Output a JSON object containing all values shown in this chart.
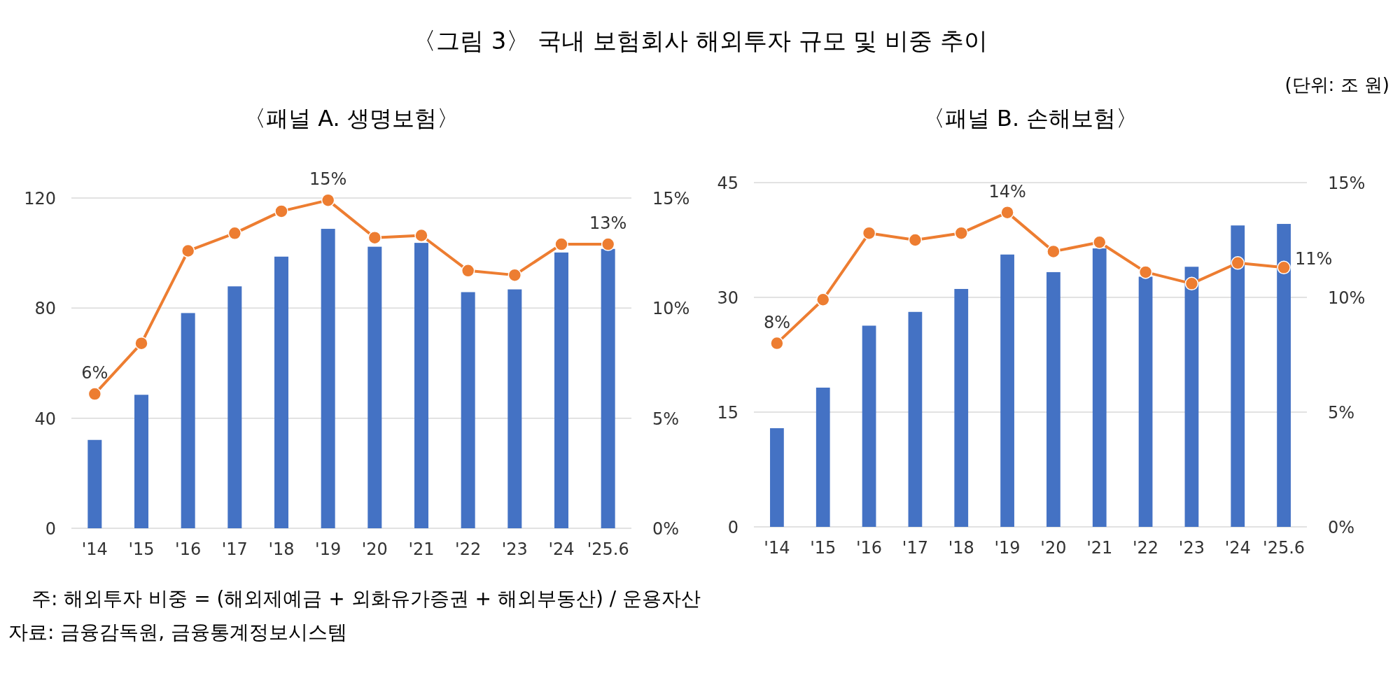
{
  "chart_data": [
    {
      "type": "bar",
      "title": "〈그림 3〉 국내 보험회사 해외투자 규모 및 비중 추이",
      "subtitle": "〈패널 A. 생명보험〉",
      "categories": [
        "'14",
        "'15",
        "'16",
        "'17",
        "'18",
        "'19",
        "'20",
        "'21",
        "'22",
        "'23",
        "'24",
        "'25.6"
      ],
      "series": [
        {
          "color": "#4472c4",
          "values": [
            32.1,
            48.5,
            78.2,
            87.9,
            98.7,
            108.8,
            102.3,
            103.7,
            85.8,
            86.8,
            100.2,
            101.5
          ]
        },
        {
          "type": "line",
          "axis": "y2",
          "color": "#ed7d31",
          "values": [
            6.1,
            8.4,
            12.6,
            13.4,
            14.4,
            14.9,
            13.2,
            13.3,
            11.7,
            11.5,
            12.9,
            12.9
          ],
          "value_labels": [
            "6%",
            null,
            null,
            null,
            null,
            "15%",
            null,
            null,
            null,
            null,
            null,
            "13%"
          ]
        }
      ],
      "ylim": [
        0,
        120
      ],
      "yticks": [
        0,
        40,
        80,
        120
      ],
      "y2lim": [
        0,
        15
      ],
      "y2ticks": [
        {
          "value": 0,
          "label": "0%"
        },
        {
          "value": 5,
          "label": "5%"
        },
        {
          "value": 10,
          "label": "10%"
        },
        {
          "value": 15,
          "label": "15%"
        }
      ],
      "grid": "y",
      "marker": "circle",
      "annotations": [
        "주: 해외투자 비중 = (해외제예금 + 외화유가증권 + 해외부동산) / 운용자산",
        "자료: 금융감독원, 금융통계정보시스템"
      ]
    },
    {
      "type": "bar",
      "subtitle": "〈패널 B. 손해보험〉",
      "categories": [
        "'14",
        "'15",
        "'16",
        "'17",
        "'18",
        "'19",
        "'20",
        "'21",
        "'22",
        "'23",
        "'24",
        "'25.6"
      ],
      "series": [
        {
          "color": "#4472c4",
          "values": [
            12.9,
            18.2,
            26.3,
            28.1,
            31.1,
            35.6,
            33.3,
            36.4,
            32.7,
            34.0,
            39.4,
            39.6
          ]
        },
        {
          "type": "line",
          "axis": "y2",
          "color": "#ed7d31",
          "values": [
            8.0,
            9.9,
            12.8,
            12.5,
            12.8,
            13.7,
            12.0,
            12.4,
            11.1,
            10.6,
            11.5,
            11.3
          ],
          "value_labels": [
            "8%",
            null,
            null,
            null,
            null,
            "14%",
            null,
            null,
            null,
            null,
            null,
            "11%"
          ]
        }
      ],
      "ylim": [
        0,
        45
      ],
      "yticks": [
        0,
        15,
        30,
        45
      ],
      "y2lim": [
        0,
        15
      ],
      "y2ticks": [
        {
          "value": 0,
          "label": "0%"
        },
        {
          "value": 5,
          "label": "5%"
        },
        {
          "value": 10,
          "label": "10%"
        },
        {
          "value": 15,
          "label": "15%"
        }
      ],
      "grid": "y",
      "marker": "circle",
      "annotations": [
        "(단위: 조 원)"
      ]
    }
  ]
}
